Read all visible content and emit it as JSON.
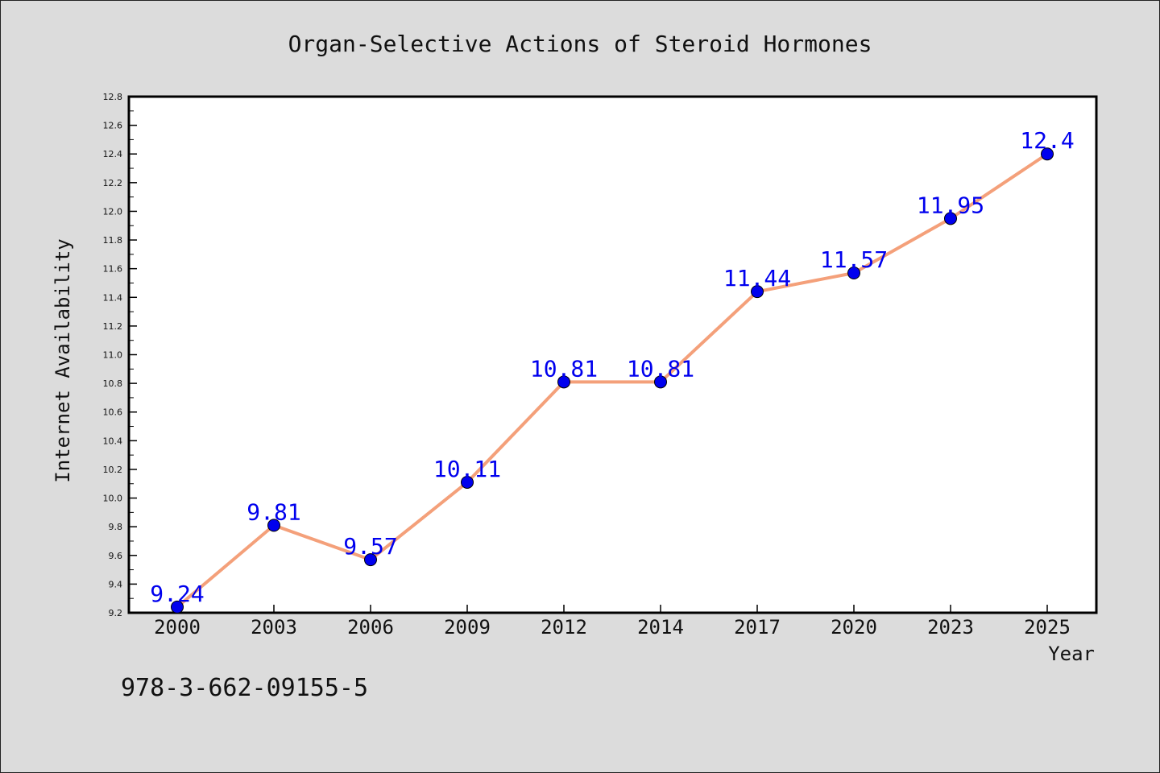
{
  "chart_data": {
    "type": "line",
    "title": "Organ-Selective Actions of Steroid Hormones",
    "xlabel": "Year",
    "ylabel": "Internet Availability",
    "categories": [
      "2000",
      "2003",
      "2006",
      "2009",
      "2012",
      "2014",
      "2017",
      "2020",
      "2023",
      "2025"
    ],
    "series": [
      {
        "values": [
          9.24,
          9.81,
          9.57,
          10.11,
          10.81,
          10.81,
          11.44,
          11.57,
          11.95,
          12.4
        ],
        "line_color": "#f4a07a",
        "marker_color": "#0000ee",
        "label_color": "#0000ee"
      }
    ],
    "ylim": [
      9.2,
      12.8
    ],
    "y_ticks": [
      "9.2",
      "9.4",
      "9.6",
      "9.8",
      "10.0",
      "10.2",
      "10.4",
      "10.6",
      "10.8",
      "11.0",
      "11.2",
      "11.4",
      "11.6",
      "11.8",
      "12.0",
      "12.2",
      "12.4",
      "12.6",
      "12.8"
    ],
    "grid": false,
    "legend": "none",
    "annotation": "978-3-662-09155-5"
  },
  "colors": {
    "background": "#dcdcdc",
    "plot_background": "#ffffff",
    "axis": "#000000"
  }
}
